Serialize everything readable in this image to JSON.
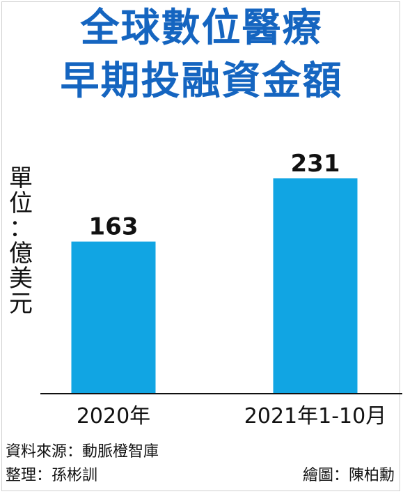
{
  "title_lines": [
    "全球數位醫療",
    "早期投融資金額"
  ],
  "unit_chars": [
    "單",
    "位",
    "：",
    "億",
    "美",
    "元"
  ],
  "chart_data": {
    "type": "bar",
    "title": "全球數位醫療早期投融資金額",
    "ylabel": "單位：億美元",
    "categories": [
      "2020年",
      "2021年1-10月"
    ],
    "series": [
      {
        "values": [
          163,
          231
        ]
      }
    ],
    "ylim": [
      0,
      300
    ],
    "grid": false,
    "legend": "none",
    "data_labels": true
  },
  "footer": {
    "source": "資料來源：動脈橙智庫",
    "compiled": "整理：孫彬訓",
    "illustration": "繪圖：陳柏勳"
  },
  "colors": {
    "title": "#1565c0",
    "bar": "#11a5e3",
    "axis": "#111111",
    "label": "#111111"
  }
}
